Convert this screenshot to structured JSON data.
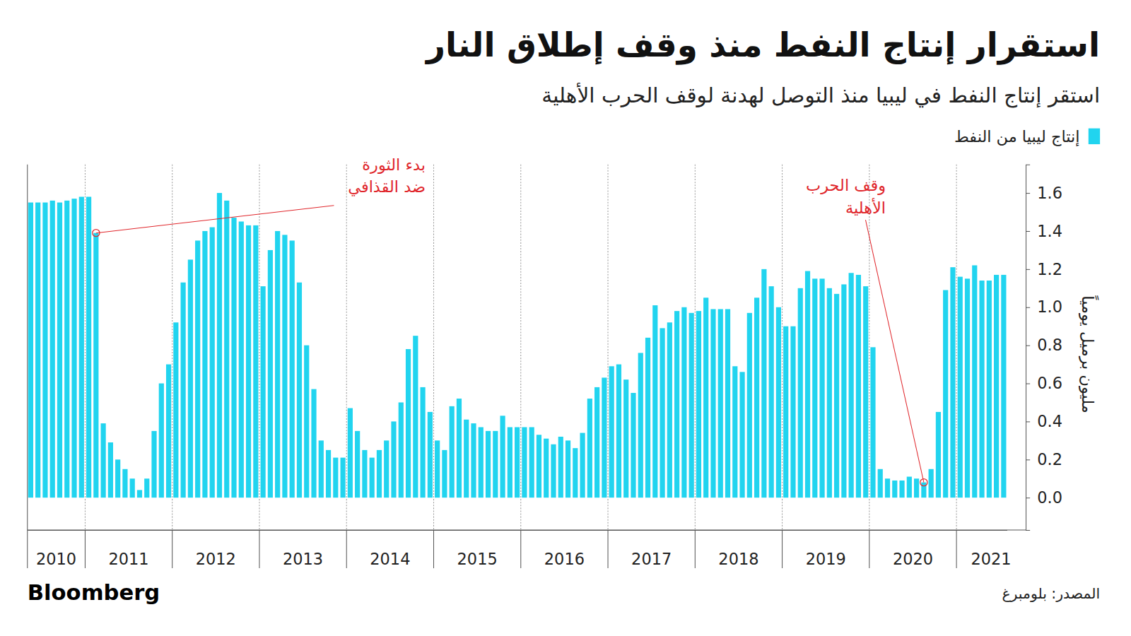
{
  "chart_data": {
    "type": "bar",
    "title": "استقرار إنتاج النفط منذ وقف إطلاق النار",
    "subtitle": "استقر إنتاج النفط في ليبيا منذ التوصل لهدنة لوقف الحرب الأهلية",
    "y_label": "مليون برميل يومياً",
    "source": "المصدر: بلومبرغ",
    "brand": "Bloomberg",
    "categories": [
      "2010",
      null,
      null,
      null,
      null,
      null,
      null,
      null,
      "2011",
      null,
      null,
      null,
      null,
      null,
      null,
      null,
      null,
      null,
      null,
      null,
      "2012",
      null,
      null,
      null,
      null,
      null,
      null,
      null,
      null,
      null,
      null,
      null,
      "2013",
      null,
      null,
      null,
      null,
      null,
      null,
      null,
      null,
      null,
      null,
      null,
      "2014",
      null,
      null,
      null,
      null,
      null,
      null,
      null,
      null,
      null,
      null,
      null,
      "2015",
      null,
      null,
      null,
      null,
      null,
      null,
      null,
      null,
      null,
      null,
      null,
      "2016",
      null,
      null,
      null,
      null,
      null,
      null,
      null,
      null,
      null,
      null,
      null,
      "2017",
      null,
      null,
      null,
      null,
      null,
      null,
      null,
      null,
      null,
      null,
      null,
      "2018",
      null,
      null,
      null,
      null,
      null,
      null,
      null,
      null,
      null,
      null,
      null,
      "2019",
      null,
      null,
      null,
      null,
      null,
      null,
      null,
      null,
      null,
      null,
      null,
      "2020",
      null,
      null,
      null,
      null,
      null,
      null,
      null,
      null,
      null,
      null,
      null,
      "2021",
      null,
      null,
      null,
      null,
      null,
      null
    ],
    "series": [
      {
        "name": "إنتاج ليبيا من النفط",
        "color": "#21d4ef",
        "values": [
          1.55,
          1.55,
          1.55,
          1.56,
          1.55,
          1.56,
          1.57,
          1.58,
          1.58,
          1.39,
          0.39,
          0.29,
          0.2,
          0.15,
          0.1,
          0.04,
          0.1,
          0.35,
          0.6,
          0.7,
          0.92,
          1.13,
          1.25,
          1.35,
          1.4,
          1.42,
          1.6,
          1.56,
          1.47,
          1.45,
          1.43,
          1.43,
          1.11,
          1.3,
          1.4,
          1.38,
          1.35,
          1.13,
          0.8,
          0.57,
          0.3,
          0.25,
          0.21,
          0.21,
          0.47,
          0.35,
          0.25,
          0.21,
          0.25,
          0.3,
          0.4,
          0.5,
          0.78,
          0.85,
          0.58,
          0.45,
          0.3,
          0.25,
          0.48,
          0.52,
          0.41,
          0.39,
          0.37,
          0.35,
          0.35,
          0.43,
          0.37,
          0.37,
          0.37,
          0.37,
          0.33,
          0.31,
          0.28,
          0.32,
          0.3,
          0.26,
          0.34,
          0.52,
          0.58,
          0.63,
          0.69,
          0.7,
          0.62,
          0.55,
          0.76,
          0.84,
          1.01,
          0.89,
          0.92,
          0.98,
          1.0,
          0.97,
          0.98,
          1.05,
          0.99,
          0.99,
          0.99,
          0.69,
          0.66,
          0.97,
          1.05,
          1.2,
          1.11,
          1.0,
          0.9,
          0.9,
          1.1,
          1.19,
          1.15,
          1.15,
          1.1,
          1.07,
          1.12,
          1.18,
          1.17,
          1.11,
          0.79,
          0.15,
          0.1,
          0.09,
          0.09,
          0.11,
          0.1,
          0.08,
          0.15,
          0.45,
          1.09,
          1.21,
          1.16,
          1.15,
          1.22,
          1.14,
          1.14,
          1.17,
          1.17
        ]
      }
    ],
    "ylim": [
      -0.17,
      1.75
    ],
    "yticks": [
      {
        "value": 0,
        "label": "0.0"
      },
      0.2,
      0.4,
      0.6,
      0.8,
      {
        "value": 1,
        "label": "1.0"
      },
      1.2,
      1.4,
      1.6
    ],
    "grid": "x",
    "legend": "top-right",
    "annotations": [
      {
        "text": [
          "بدء الثورة",
          "ضد القذافي"
        ],
        "x": 9,
        "color": "#e0262b"
      },
      {
        "text": [
          "وقف الحرب",
          "الأهلية"
        ],
        "x": 123,
        "color": "#e0262b"
      }
    ]
  }
}
